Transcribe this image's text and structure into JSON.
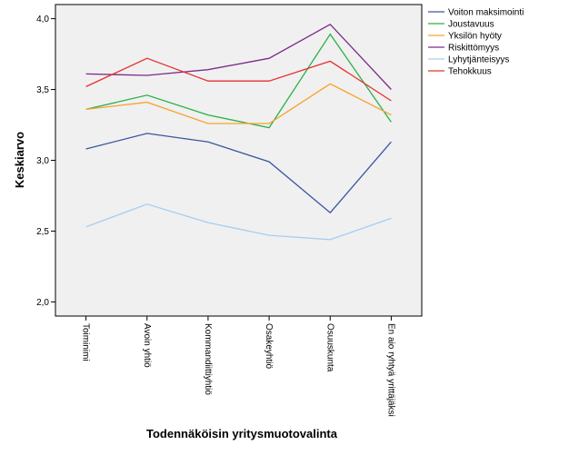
{
  "chart_data": {
    "type": "line",
    "title": "",
    "xlabel": "Todennäköisin yritysmuotovalinta",
    "ylabel": "Keskiarvo",
    "ylim": [
      1.9,
      4.1
    ],
    "yticks": [
      2.0,
      2.5,
      3.0,
      3.5,
      4.0
    ],
    "ytick_labels": [
      "2,0",
      "2,5",
      "3,0",
      "3,5",
      "4,0"
    ],
    "grid": false,
    "legend_position": "right",
    "plot_background": "#f0f0f0",
    "categories": [
      "Toiminimi",
      "Avoin yhtiö",
      "Kommandiittiyhtiö",
      "Osakeyhtiö",
      "Osuuskunta",
      "En aio ryhtyä yrittäjäksi"
    ],
    "series": [
      {
        "name": "Voiton maksimointi",
        "color": "#3b54a0",
        "values": [
          3.08,
          3.19,
          3.13,
          2.99,
          2.63,
          3.13
        ]
      },
      {
        "name": "Joustavuus",
        "color": "#2ab048",
        "values": [
          3.36,
          3.46,
          3.32,
          3.23,
          3.89,
          3.27
        ]
      },
      {
        "name": "Yksilön hyöty",
        "color": "#f7a22e",
        "values": [
          3.36,
          3.41,
          3.26,
          3.26,
          3.54,
          3.32
        ]
      },
      {
        "name": "Riskittömyys",
        "color": "#7d2b8b",
        "values": [
          3.61,
          3.6,
          3.64,
          3.72,
          3.96,
          3.5
        ]
      },
      {
        "name": "Lyhytjänteisyys",
        "color": "#a8cdf0",
        "values": [
          2.53,
          2.69,
          2.56,
          2.47,
          2.44,
          2.59
        ]
      },
      {
        "name": "Tehokkuus",
        "color": "#e8312f",
        "values": [
          3.52,
          3.72,
          3.56,
          3.56,
          3.7,
          3.42
        ]
      }
    ]
  }
}
